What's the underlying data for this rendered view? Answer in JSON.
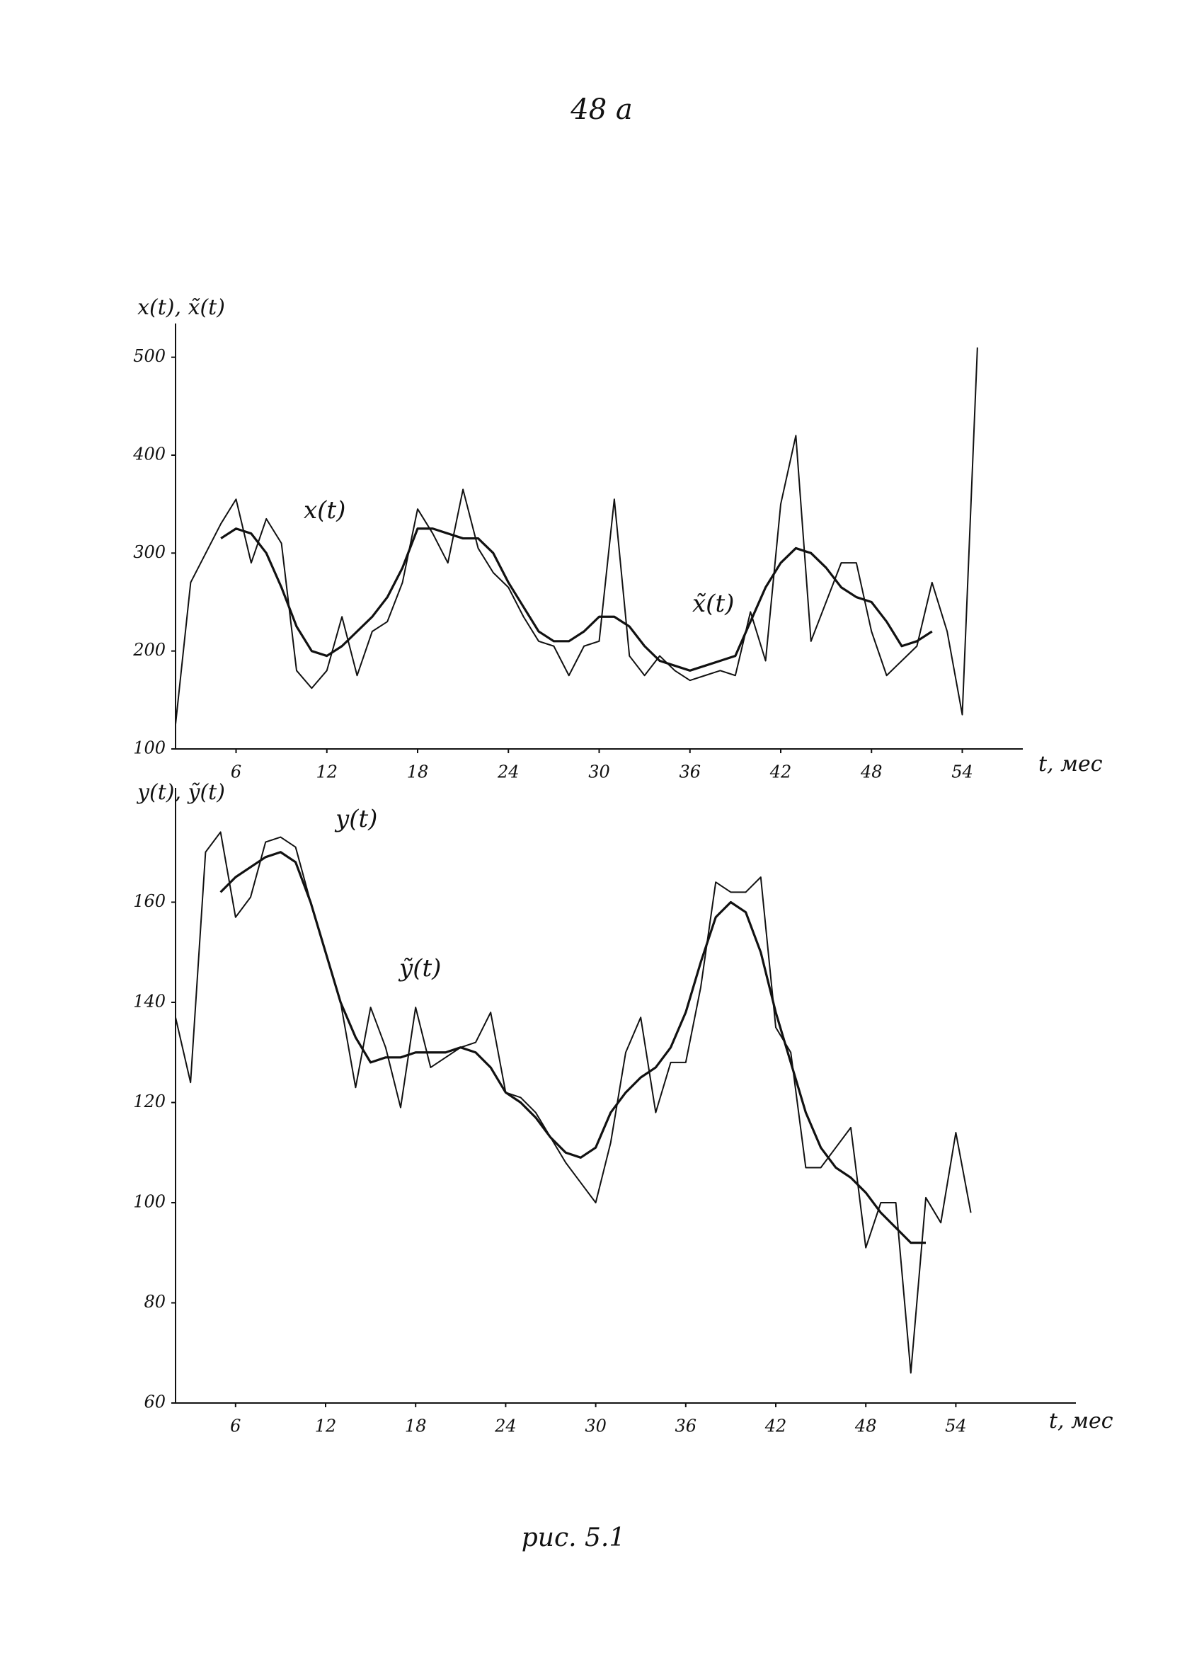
{
  "page_number": "48 a",
  "chart_data": [
    {
      "type": "line",
      "ylabel": "x(t), x̃(t)",
      "xlabel": "t, мес",
      "x": [
        2,
        3,
        4,
        5,
        6,
        7,
        8,
        9,
        10,
        11,
        12,
        13,
        14,
        15,
        16,
        17,
        18,
        19,
        20,
        21,
        22,
        23,
        24,
        25,
        26,
        27,
        28,
        29,
        30,
        31,
        32,
        33,
        34,
        35,
        36,
        37,
        38,
        39,
        40,
        41,
        42,
        43,
        44,
        45,
        46,
        47,
        48,
        49,
        50,
        51,
        52,
        53,
        54,
        55
      ],
      "series": [
        {
          "name": "x(t)",
          "color": "#111111",
          "values": [
            125,
            270,
            300,
            330,
            355,
            290,
            335,
            310,
            180,
            162,
            180,
            235,
            175,
            220,
            230,
            270,
            345,
            320,
            290,
            365,
            305,
            280,
            265,
            235,
            210,
            205,
            175,
            205,
            210,
            355,
            195,
            175,
            195,
            180,
            170,
            175,
            180,
            175,
            240,
            190,
            350,
            420,
            210,
            250,
            290,
            290,
            220,
            175,
            190,
            205,
            270,
            220,
            135,
            510
          ]
        },
        {
          "name": "x̃(t)",
          "color": "#111111",
          "values": [
            null,
            null,
            null,
            315,
            325,
            320,
            300,
            265,
            225,
            200,
            195,
            205,
            220,
            235,
            255,
            285,
            325,
            325,
            320,
            315,
            315,
            300,
            270,
            245,
            220,
            210,
            210,
            220,
            235,
            235,
            225,
            205,
            190,
            185,
            180,
            185,
            190,
            195,
            230,
            265,
            290,
            305,
            300,
            285,
            265,
            255,
            250,
            230,
            205,
            210,
            220,
            null,
            null,
            null
          ]
        }
      ],
      "xlim": [
        2,
        58
      ],
      "ylim": [
        100,
        520
      ],
      "xticks": [
        6,
        12,
        18,
        24,
        30,
        36,
        42,
        48,
        54
      ],
      "yticks": [
        100,
        200,
        300,
        400,
        500
      ],
      "grid": false
    },
    {
      "type": "line",
      "ylabel": "y(t), ỹ(t)",
      "xlabel": "t, мес",
      "x": [
        2,
        3,
        4,
        5,
        6,
        7,
        8,
        9,
        10,
        11,
        12,
        13,
        14,
        15,
        16,
        17,
        18,
        19,
        20,
        21,
        22,
        23,
        24,
        25,
        26,
        27,
        28,
        29,
        30,
        31,
        32,
        33,
        34,
        35,
        36,
        37,
        38,
        39,
        40,
        41,
        42,
        43,
        44,
        45,
        46,
        47,
        48,
        49,
        50,
        51,
        52,
        53,
        54,
        55,
        56
      ],
      "series": [
        {
          "name": "y(t)",
          "color": "#111111",
          "values": [
            137,
            124,
            170,
            174,
            157,
            161,
            172,
            173,
            171,
            160,
            150,
            140,
            123,
            139,
            131,
            119,
            139,
            127,
            129,
            131,
            132,
            138,
            122,
            121,
            118,
            113,
            108,
            104,
            100,
            112,
            130,
            137,
            118,
            128,
            128,
            143,
            164,
            162,
            162,
            165,
            135,
            130,
            107,
            107,
            111,
            115,
            91,
            100,
            100,
            66,
            101,
            96,
            114,
            98,
            null
          ]
        },
        {
          "name": "ỹ(t)",
          "color": "#111111",
          "values": [
            null,
            null,
            null,
            162,
            165,
            167,
            169,
            170,
            168,
            160,
            150,
            140,
            133,
            128,
            129,
            129,
            130,
            130,
            130,
            131,
            130,
            127,
            122,
            120,
            117,
            113,
            110,
            109,
            111,
            118,
            122,
            125,
            127,
            131,
            138,
            148,
            157,
            160,
            158,
            150,
            138,
            128,
            118,
            111,
            107,
            105,
            102,
            98,
            95,
            92,
            92,
            null,
            null,
            null,
            null
          ]
        }
      ],
      "xlim": [
        2,
        62
      ],
      "ylim": [
        60,
        180
      ],
      "xticks": [
        6,
        12,
        18,
        24,
        30,
        36,
        42,
        48,
        54
      ],
      "yticks": [
        60,
        80,
        100,
        120,
        140,
        160
      ],
      "grid": false
    }
  ],
  "caption": "рис. 5.1"
}
